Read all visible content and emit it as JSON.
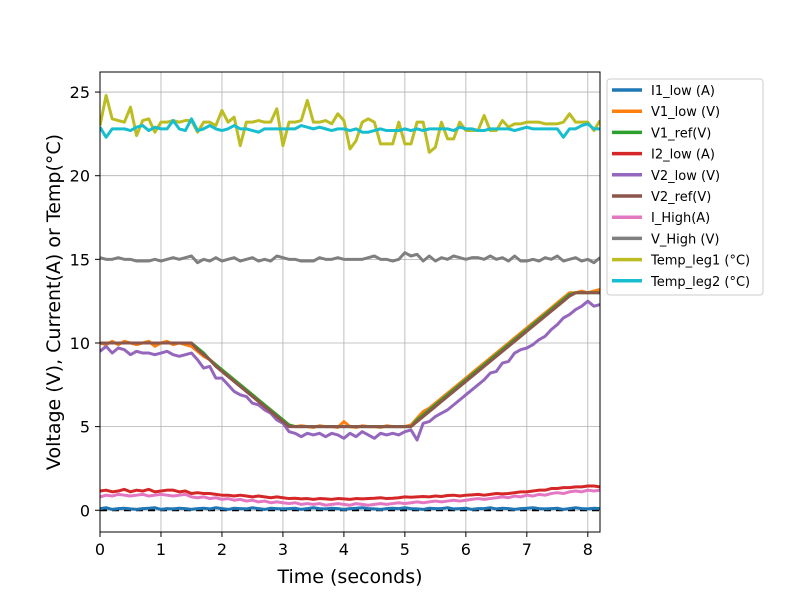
{
  "chart_data": {
    "type": "line",
    "xlabel": "Time (seconds)",
    "ylabel": "Voltage (V), Current(A) or Temp(°C)",
    "xlim": [
      0,
      8.2
    ],
    "ylim": [
      -1.3,
      26.2
    ],
    "xticks": [
      "0",
      "1",
      "2",
      "3",
      "4",
      "5",
      "6",
      "7",
      "8"
    ],
    "yticks": [
      "0",
      "5",
      "10",
      "15",
      "20",
      "25"
    ],
    "grid": true,
    "legend_position": "outside-top-right",
    "x": [
      0,
      0.1,
      0.2,
      0.3,
      0.4,
      0.5,
      0.6,
      0.7,
      0.8,
      0.9,
      1.0,
      1.1,
      1.2,
      1.3,
      1.4,
      1.5,
      1.6,
      1.7,
      1.8,
      1.9,
      2.0,
      2.1,
      2.2,
      2.3,
      2.4,
      2.5,
      2.6,
      2.7,
      2.8,
      2.9,
      3.0,
      3.1,
      3.2,
      3.3,
      3.4,
      3.5,
      3.6,
      3.7,
      3.8,
      3.9,
      4.0,
      4.1,
      4.2,
      4.3,
      4.4,
      4.5,
      4.6,
      4.7,
      4.8,
      4.9,
      5.0,
      5.1,
      5.2,
      5.3,
      5.4,
      5.5,
      5.6,
      5.7,
      5.8,
      5.9,
      6.0,
      6.1,
      6.2,
      6.3,
      6.4,
      6.5,
      6.6,
      6.7,
      6.8,
      6.9,
      7.0,
      7.1,
      7.2,
      7.3,
      7.4,
      7.5,
      7.6,
      7.7,
      7.8,
      7.9,
      8.0,
      8.1,
      8.2
    ],
    "series": [
      {
        "name": "I1_low (A)",
        "color": "#1f77b4",
        "values": [
          0.1,
          0.15,
          0.05,
          0.1,
          0.12,
          0.08,
          0.05,
          0.1,
          0.12,
          0.15,
          0.05,
          0.1,
          0.08,
          0.12,
          0.1,
          0.05,
          0.1,
          0.12,
          0.08,
          0.15,
          0.1,
          0.05,
          0.12,
          0.1,
          0.08,
          0.15,
          0.1,
          0.05,
          0.12,
          0.1,
          0.08,
          0.1,
          0.12,
          0.05,
          0.1,
          0.15,
          0.1,
          0.08,
          0.12,
          0.1,
          0.05,
          0.1,
          0.12,
          0.15,
          0.1,
          0.08,
          0.05,
          0.1,
          0.12,
          0.1,
          0.15,
          0.1,
          0.08,
          0.05,
          0.12,
          0.1,
          0.1,
          0.15,
          0.08,
          0.1,
          0.12,
          0.05,
          0.1,
          0.1,
          0.15,
          0.08,
          0.12,
          0.1,
          0.05,
          0.1,
          0.12,
          0.15,
          0.1,
          0.08,
          0.1,
          0.12,
          0.05,
          0.1,
          0.15,
          0.1,
          0.08,
          0.12,
          0.1
        ]
      },
      {
        "name": "V1_low (V)",
        "color": "#ff7f0e",
        "values": [
          10.0,
          9.9,
          10.1,
          9.9,
          10.1,
          10.0,
          9.9,
          10.0,
          10.1,
          9.8,
          10.0,
          10.1,
          9.9,
          10.0,
          9.9,
          9.8,
          9.5,
          9.2,
          9.0,
          8.7,
          8.4,
          8.1,
          7.8,
          7.5,
          7.2,
          6.9,
          6.6,
          6.3,
          6.0,
          5.7,
          5.4,
          5.1,
          5.0,
          5.05,
          5.0,
          4.95,
          5.05,
          5.0,
          5.0,
          4.95,
          5.3,
          5.0,
          4.95,
          5.05,
          5.0,
          5.0,
          4.95,
          5.05,
          5.0,
          5.0,
          5.0,
          5.1,
          5.5,
          5.9,
          6.1,
          6.4,
          6.7,
          7.0,
          7.3,
          7.6,
          7.9,
          8.2,
          8.5,
          8.8,
          9.1,
          9.4,
          9.7,
          10.0,
          10.3,
          10.6,
          10.9,
          11.2,
          11.5,
          11.8,
          12.1,
          12.4,
          12.7,
          13.0,
          13.0,
          13.1,
          13.0,
          13.1,
          13.2
        ]
      },
      {
        "name": "V1_ref(V)",
        "color": "#2ca02c",
        "values": [
          10.0,
          10.0,
          10.0,
          10.0,
          10.0,
          10.0,
          10.0,
          10.0,
          10.0,
          10.0,
          10.0,
          10.0,
          10.0,
          10.0,
          10.0,
          10.0,
          9.7,
          9.4,
          9.0,
          8.7,
          8.4,
          8.1,
          7.8,
          7.5,
          7.2,
          6.9,
          6.6,
          6.3,
          6.0,
          5.7,
          5.4,
          5.1,
          5.0,
          5.0,
          5.0,
          5.0,
          5.0,
          5.0,
          5.0,
          5.0,
          5.0,
          5.0,
          5.0,
          5.0,
          5.0,
          5.0,
          5.0,
          5.0,
          5.0,
          5.0,
          5.0,
          5.0,
          5.4,
          5.7,
          6.0,
          6.3,
          6.6,
          6.9,
          7.2,
          7.5,
          7.8,
          8.1,
          8.4,
          8.7,
          9.0,
          9.3,
          9.6,
          9.9,
          10.2,
          10.5,
          10.8,
          11.1,
          11.4,
          11.7,
          12.0,
          12.3,
          12.6,
          12.9,
          13.0,
          13.0,
          13.0,
          13.0,
          13.0
        ]
      },
      {
        "name": "I2_low (A)",
        "color": "#d62728",
        "values": [
          1.15,
          1.2,
          1.1,
          1.15,
          1.25,
          1.1,
          1.2,
          1.15,
          1.25,
          1.1,
          1.15,
          1.2,
          1.2,
          1.1,
          1.15,
          1.0,
          1.05,
          1.0,
          1.0,
          0.95,
          0.9,
          0.9,
          0.85,
          0.9,
          0.85,
          0.8,
          0.85,
          0.8,
          0.75,
          0.8,
          0.75,
          0.7,
          0.72,
          0.68,
          0.7,
          0.65,
          0.7,
          0.68,
          0.65,
          0.7,
          0.68,
          0.65,
          0.7,
          0.68,
          0.7,
          0.72,
          0.75,
          0.7,
          0.72,
          0.75,
          0.8,
          0.78,
          0.8,
          0.82,
          0.8,
          0.85,
          0.82,
          0.88,
          0.9,
          0.85,
          0.9,
          0.92,
          0.95,
          0.9,
          0.95,
          1.0,
          0.98,
          1.0,
          1.05,
          1.1,
          1.1,
          1.15,
          1.2,
          1.2,
          1.3,
          1.3,
          1.35,
          1.35,
          1.4,
          1.4,
          1.45,
          1.45,
          1.4
        ]
      },
      {
        "name": "V2_low (V)",
        "color": "#9467bd",
        "values": [
          9.5,
          9.8,
          9.4,
          9.7,
          9.6,
          9.3,
          9.5,
          9.4,
          9.4,
          9.3,
          9.4,
          9.5,
          9.3,
          9.2,
          9.3,
          9.4,
          9.0,
          8.5,
          8.6,
          7.9,
          7.9,
          7.5,
          7.1,
          6.9,
          6.8,
          6.4,
          6.3,
          6.0,
          5.8,
          5.4,
          5.2,
          4.7,
          4.6,
          4.4,
          4.6,
          4.5,
          4.6,
          4.4,
          4.6,
          4.5,
          4.3,
          4.6,
          4.4,
          4.7,
          4.5,
          4.3,
          4.6,
          4.5,
          4.6,
          4.5,
          4.7,
          4.8,
          4.2,
          5.2,
          5.3,
          5.6,
          5.8,
          6.0,
          6.3,
          6.6,
          6.9,
          7.2,
          7.5,
          7.8,
          8.2,
          8.3,
          8.8,
          8.9,
          9.4,
          9.6,
          9.7,
          9.9,
          10.2,
          10.4,
          10.8,
          11.1,
          11.5,
          11.7,
          12.0,
          12.2,
          12.5,
          12.2,
          12.3
        ]
      },
      {
        "name": "V2_ref(V)",
        "color": "#8c564b",
        "values": [
          10.0,
          10.0,
          10.0,
          10.0,
          10.0,
          10.0,
          10.0,
          10.0,
          10.0,
          10.0,
          10.0,
          10.0,
          10.0,
          10.0,
          10.0,
          10.0,
          9.6,
          9.3,
          9.0,
          8.6,
          8.3,
          8.0,
          7.7,
          7.4,
          7.1,
          6.8,
          6.5,
          6.2,
          5.9,
          5.6,
          5.3,
          5.0,
          5.0,
          5.0,
          5.0,
          5.0,
          5.0,
          5.0,
          5.0,
          5.0,
          5.0,
          5.0,
          5.0,
          5.0,
          5.0,
          5.0,
          5.0,
          5.0,
          5.0,
          5.0,
          5.0,
          5.0,
          5.3,
          5.6,
          5.9,
          6.2,
          6.5,
          6.8,
          7.1,
          7.4,
          7.7,
          8.0,
          8.3,
          8.6,
          8.9,
          9.2,
          9.5,
          9.8,
          10.1,
          10.4,
          10.7,
          11.0,
          11.3,
          11.6,
          11.9,
          12.2,
          12.5,
          12.8,
          13.0,
          13.0,
          13.0,
          13.0,
          13.0
        ]
      },
      {
        "name": "I_High(A)",
        "color": "#e377c2",
        "values": [
          0.8,
          0.9,
          0.85,
          0.95,
          0.9,
          0.85,
          0.9,
          0.95,
          0.85,
          0.9,
          0.95,
          0.9,
          0.85,
          0.9,
          0.95,
          0.8,
          0.75,
          0.8,
          0.7,
          0.75,
          0.65,
          0.7,
          0.6,
          0.65,
          0.55,
          0.6,
          0.5,
          0.55,
          0.45,
          0.5,
          0.45,
          0.4,
          0.45,
          0.35,
          0.4,
          0.35,
          0.4,
          0.3,
          0.35,
          0.4,
          0.35,
          0.3,
          0.4,
          0.35,
          0.3,
          0.35,
          0.4,
          0.35,
          0.4,
          0.45,
          0.4,
          0.45,
          0.5,
          0.45,
          0.5,
          0.55,
          0.5,
          0.55,
          0.6,
          0.55,
          0.6,
          0.65,
          0.7,
          0.65,
          0.7,
          0.75,
          0.8,
          0.75,
          0.85,
          0.8,
          0.9,
          0.85,
          0.95,
          0.9,
          1.0,
          1.05,
          1.0,
          1.1,
          1.15,
          1.1,
          1.2,
          1.15,
          1.2
        ]
      },
      {
        "name": "V_High (V)",
        "color": "#7f7f7f",
        "values": [
          15.1,
          15.0,
          15.0,
          15.1,
          15.0,
          15.0,
          14.9,
          14.9,
          14.9,
          15.0,
          14.9,
          15.0,
          15.1,
          15.0,
          15.1,
          15.2,
          14.8,
          15.0,
          14.9,
          15.1,
          14.9,
          15.0,
          15.1,
          14.9,
          15.0,
          15.1,
          14.9,
          15.0,
          14.9,
          15.2,
          15.1,
          15.0,
          15.0,
          14.9,
          14.9,
          14.9,
          15.1,
          15.0,
          15.0,
          15.1,
          15.0,
          15.0,
          15.0,
          15.0,
          15.1,
          15.2,
          15.0,
          15.0,
          14.9,
          15.0,
          15.4,
          15.2,
          15.3,
          14.9,
          15.2,
          14.9,
          15.1,
          15.0,
          15.2,
          15.1,
          15.0,
          15.1,
          15.1,
          15.0,
          15.2,
          15.0,
          15.1,
          14.9,
          15.2,
          14.9,
          14.9,
          15.0,
          14.9,
          15.1,
          15.0,
          15.2,
          14.9,
          15.0,
          15.1,
          14.9,
          15.0,
          14.8,
          15.1
        ]
      },
      {
        "name": "Temp_leg1 (°C)",
        "color": "#bcbd22",
        "values": [
          23.0,
          24.8,
          23.4,
          23.3,
          23.2,
          24.1,
          22.4,
          23.3,
          23.4,
          22.6,
          23.2,
          23.2,
          23.3,
          23.2,
          23.3,
          23.3,
          22.6,
          23.2,
          23.2,
          23.0,
          23.9,
          23.2,
          23.5,
          21.8,
          23.2,
          23.2,
          23.3,
          23.2,
          23.2,
          24.0,
          21.8,
          23.2,
          23.2,
          23.3,
          24.5,
          23.2,
          23.2,
          23.3,
          23.1,
          23.7,
          23.3,
          21.6,
          22.1,
          23.2,
          23.4,
          23.2,
          21.9,
          21.9,
          21.9,
          23.2,
          21.9,
          21.9,
          23.2,
          23.2,
          21.4,
          21.7,
          23.2,
          22.2,
          22.2,
          23.2,
          22.7,
          22.7,
          22.7,
          23.6,
          22.7,
          22.7,
          23.3,
          22.9,
          23.1,
          23.1,
          23.2,
          23.2,
          23.2,
          23.1,
          23.1,
          23.1,
          23.2,
          23.7,
          23.2,
          23.2,
          23.2,
          22.7,
          23.3
        ]
      },
      {
        "name": "Temp_leg2 (°C)",
        "color": "#17becf",
        "values": [
          22.9,
          22.3,
          22.8,
          22.8,
          22.8,
          22.7,
          22.9,
          23.0,
          22.7,
          22.9,
          22.8,
          22.8,
          23.3,
          22.8,
          22.7,
          23.4,
          22.7,
          22.8,
          23.0,
          22.8,
          22.7,
          22.8,
          23.0,
          22.8,
          22.8,
          22.7,
          22.6,
          22.8,
          22.8,
          22.8,
          22.8,
          22.8,
          22.8,
          23.0,
          22.9,
          22.8,
          22.9,
          22.8,
          22.7,
          22.8,
          22.8,
          22.7,
          22.8,
          22.6,
          22.6,
          22.7,
          22.8,
          22.7,
          22.7,
          22.7,
          22.8,
          22.7,
          22.8,
          22.7,
          22.8,
          22.8,
          22.8,
          22.8,
          22.7,
          22.9,
          22.8,
          22.8,
          22.7,
          22.7,
          22.8,
          22.8,
          22.8,
          22.8,
          22.7,
          22.8,
          22.9,
          22.8,
          22.8,
          22.8,
          22.8,
          22.8,
          22.3,
          22.8,
          22.8,
          23.0,
          23.1,
          22.8,
          22.8
        ]
      }
    ]
  }
}
